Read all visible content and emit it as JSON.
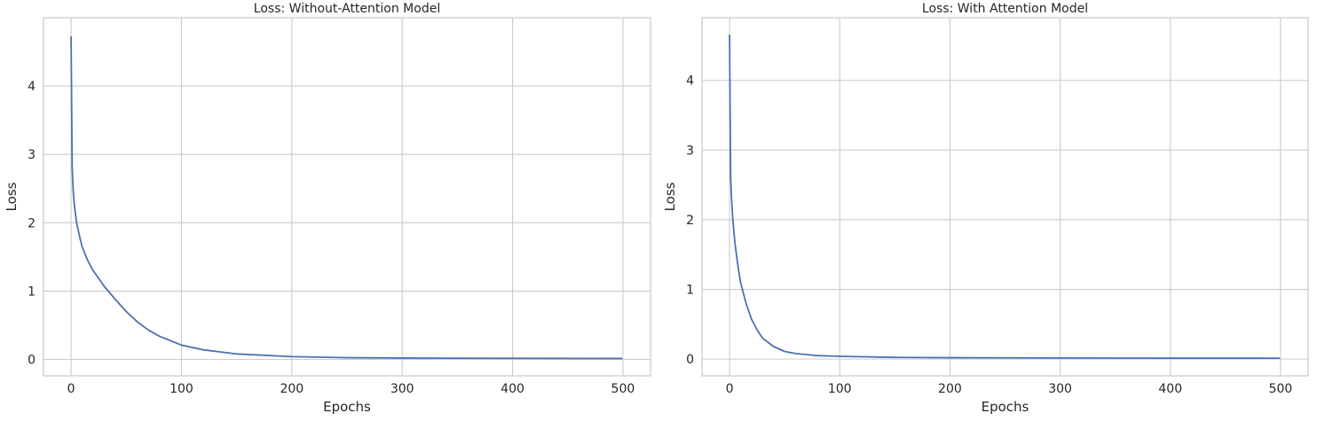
{
  "chart_data": [
    {
      "type": "line",
      "title": "Loss: Without-Attention Model",
      "xlabel": "Epochs",
      "ylabel": "Loss",
      "xlim": [
        -25,
        525
      ],
      "ylim": [
        -0.24,
        5.0
      ],
      "xticks": [
        0,
        100,
        200,
        300,
        400,
        500
      ],
      "yticks": [
        0,
        1,
        2,
        3,
        4
      ],
      "grid": true,
      "series": [
        {
          "color": "#4c72b0",
          "x": [
            0,
            1,
            2,
            3,
            5,
            8,
            10,
            15,
            20,
            30,
            40,
            50,
            60,
            70,
            80,
            100,
            120,
            150,
            200,
            250,
            300,
            350,
            400,
            450,
            499
          ],
          "y": [
            4.72,
            2.8,
            2.45,
            2.25,
            2.0,
            1.78,
            1.65,
            1.45,
            1.3,
            1.07,
            0.88,
            0.7,
            0.55,
            0.43,
            0.34,
            0.21,
            0.14,
            0.08,
            0.04,
            0.025,
            0.02,
            0.018,
            0.016,
            0.015,
            0.014
          ]
        }
      ]
    },
    {
      "type": "line",
      "title": "Loss: With Attention Model",
      "xlabel": "Epochs",
      "ylabel": "Loss",
      "xlim": [
        -25,
        525
      ],
      "ylim": [
        -0.24,
        4.9
      ],
      "xticks": [
        0,
        100,
        200,
        300,
        400,
        500
      ],
      "yticks": [
        0,
        1,
        2,
        3,
        4
      ],
      "grid": true,
      "series": [
        {
          "color": "#4c72b0",
          "x": [
            0,
            1,
            2,
            3,
            5,
            8,
            10,
            15,
            20,
            25,
            30,
            40,
            50,
            60,
            80,
            100,
            150,
            200,
            300,
            400,
            499
          ],
          "y": [
            4.65,
            2.6,
            2.25,
            2.0,
            1.65,
            1.3,
            1.1,
            0.8,
            0.57,
            0.42,
            0.3,
            0.18,
            0.11,
            0.08,
            0.05,
            0.04,
            0.025,
            0.02,
            0.016,
            0.014,
            0.013
          ]
        }
      ]
    }
  ]
}
